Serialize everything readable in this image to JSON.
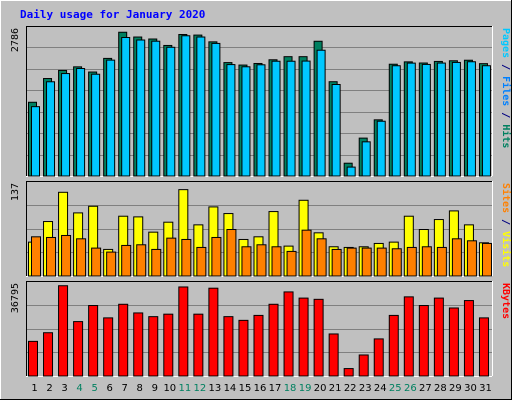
{
  "chart_data": {
    "type": "bar",
    "title": "Daily usage for January 2020",
    "categories": [
      "1",
      "2",
      "3",
      "4",
      "5",
      "6",
      "7",
      "8",
      "9",
      "10",
      "11",
      "12",
      "13",
      "14",
      "15",
      "16",
      "17",
      "18",
      "19",
      "20",
      "21",
      "22",
      "23",
      "24",
      "25",
      "26",
      "27",
      "28",
      "29",
      "30",
      "31"
    ],
    "weekend_days": [
      "4",
      "5",
      "11",
      "12",
      "18",
      "19",
      "25",
      "26"
    ],
    "panels": [
      {
        "id": "hits",
        "ymax_label": "2786",
        "ylim": [
          0,
          2786
        ],
        "series": [
          {
            "name": "Hits",
            "color": "#008060",
            "values": [
              1407,
              1860,
              2014,
              2083,
              1984,
              2244,
              2743,
              2652,
              2614,
              2491,
              2700,
              2689,
              2560,
              2164,
              2117,
              2147,
              2218,
              2277,
              2277,
              2571,
              1799,
              244,
              723,
              1072,
              2133,
              2178,
              2156,
              2186,
              2199,
              2209,
              2144
            ]
          },
          {
            "name": "Files",
            "color": "#00c8ff",
            "values": [
              1323,
              1798,
              1955,
              2051,
              1942,
              2211,
              2643,
              2595,
              2572,
              2456,
              2676,
              2652,
              2530,
              2126,
              2084,
              2122,
              2190,
              2190,
              2193,
              2400,
              1746,
              170,
              652,
              1045,
              2104,
              2154,
              2129,
              2155,
              2167,
              2180,
              2104
            ]
          },
          {
            "name": "Pages",
            "color": "#00c8ff",
            "values": []
          }
        ],
        "axis_label_parts": [
          {
            "text": "Pages",
            "color": "#00c8ff"
          },
          {
            "text": " / ",
            "color": "#000080"
          },
          {
            "text": "Files",
            "color": "#0080ff"
          },
          {
            "text": " / ",
            "color": "#000080"
          },
          {
            "text": "Hits",
            "color": "#008060"
          }
        ]
      },
      {
        "id": "visits",
        "ymax_label": "137",
        "ylim": [
          0,
          137
        ],
        "series": [
          {
            "name": "Visits",
            "color": "#ffff00",
            "values": [
              51,
              82,
              126,
              95,
              105,
              40,
              90,
              89,
              66,
              81,
              130,
              77,
              104,
              94,
              55,
              59,
              97,
              45,
              114,
              65,
              44,
              43,
              44,
              49,
              51,
              90,
              70,
              85,
              98,
              77,
              50
            ]
          },
          {
            "name": "Sites",
            "color": "#ff8000",
            "values": [
              59,
              58,
              61,
              56,
              42,
              36,
              46,
              47,
              40,
              57,
              55,
              43,
              58,
              70,
              44,
              47,
              44,
              37,
              69,
              56,
              40,
              42,
              42,
              42,
              41,
              43,
              44,
              43,
              56,
              53,
              49
            ]
          }
        ],
        "axis_label_parts": [
          {
            "text": "Sites",
            "color": "#ff8000"
          },
          {
            "text": " / ",
            "color": "#000080"
          },
          {
            "text": "Visits",
            "color": "#ffff00"
          }
        ]
      },
      {
        "id": "kbytes",
        "ymax_label": "36795",
        "ylim": [
          0,
          36795
        ],
        "series": [
          {
            "name": "KBytes",
            "color": "#ff0000",
            "values": [
              14000,
              17500,
              36500,
              22000,
              28500,
              23500,
              29000,
              25500,
              24000,
              25000,
              36000,
              25000,
              35500,
              24000,
              22500,
              24500,
              29000,
              34000,
              31500,
              31000,
              17000,
              3000,
              8500,
              15000,
              24500,
              32000,
              28500,
              31500,
              27500,
              30500,
              23500
            ]
          }
        ],
        "axis_label_parts": [
          {
            "text": "KBytes",
            "color": "#ff0000"
          }
        ]
      }
    ],
    "colors": {
      "background": "#c0c0c0",
      "plot_bg": "#c0c0c0",
      "title": "#0000ff",
      "gridline": "#808080",
      "axis_ticks": "#000000",
      "weekend_label": "#008060",
      "weekday_label": "#000000"
    }
  }
}
